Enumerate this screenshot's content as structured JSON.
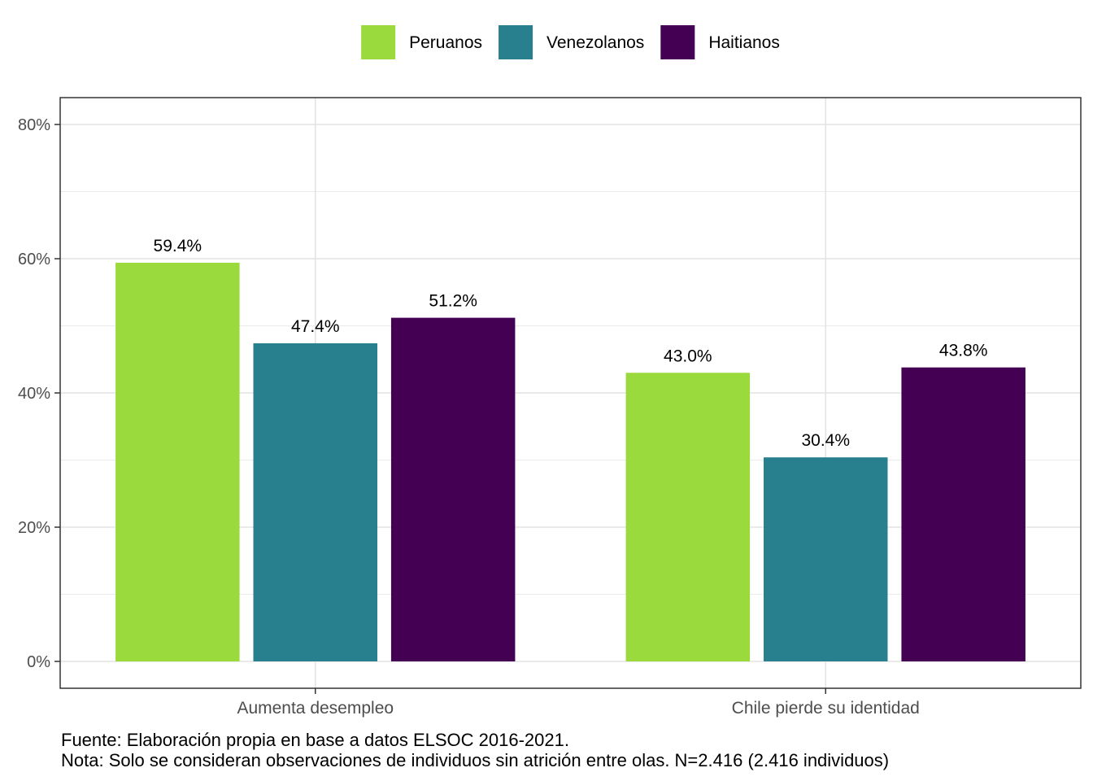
{
  "chart_data": {
    "type": "bar",
    "title": "",
    "xlabel": "",
    "ylabel": "",
    "categories": [
      "Aumenta desempleo",
      "Chile pierde su identidad"
    ],
    "series": [
      {
        "name": "Peruanos",
        "color": "#9ADA3D",
        "values": [
          59.4,
          43.0
        ],
        "labels": [
          "59.4%",
          "43.0%"
        ]
      },
      {
        "name": "Venezolanos",
        "color": "#287F8E",
        "values": [
          47.4,
          30.4
        ],
        "labels": [
          "47.4%",
          "30.4%"
        ]
      },
      {
        "name": "Haitianos",
        "color": "#440154",
        "values": [
          51.2,
          43.8
        ],
        "labels": [
          "51.2%",
          "43.8%"
        ]
      }
    ],
    "ylim": [
      -4,
      84
    ],
    "yticks": [
      0,
      20,
      40,
      60,
      80
    ],
    "ytick_labels": [
      "0%",
      "20%",
      "40%",
      "60%",
      "80%"
    ],
    "grid": true,
    "legend_position": "top"
  },
  "captions": {
    "source": "Fuente: Elaboración propia en base a datos ELSOC 2016-2021.",
    "note": "Nota: Solo se consideran observaciones de individuos sin atrición entre olas. N=2.416 (2.416 individuos)"
  }
}
